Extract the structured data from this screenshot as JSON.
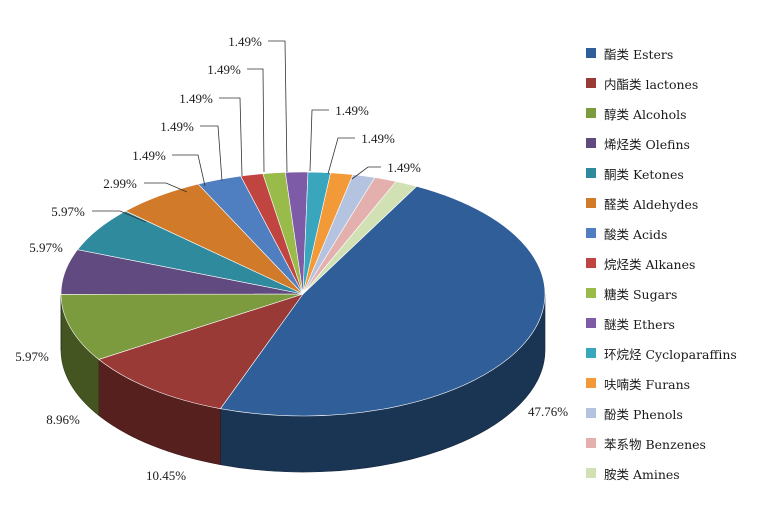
{
  "chart_data": {
    "type": "pie",
    "title": "",
    "style": "3d",
    "legend_position": "right",
    "slices": [
      {
        "name": "酯类 Esters",
        "value": 47.76,
        "label": "47.76%",
        "color": "#2f5e99"
      },
      {
        "name": "内酯类 lactones",
        "value": 10.45,
        "label": "10.45%",
        "color": "#9a3a36"
      },
      {
        "name": "醇类 Alcohols",
        "value": 8.96,
        "label": "8.96%",
        "color": "#7b9b3e"
      },
      {
        "name": "烯烃类 Olefins",
        "value": 5.97,
        "label": "5.97%",
        "color": "#614a80"
      },
      {
        "name": "酮类 Ketones",
        "value": 5.97,
        "label": "5.97%",
        "color": "#2f8a9e"
      },
      {
        "name": "醛类 Aldehydes",
        "value": 5.97,
        "label": "5.97%",
        "color": "#d07a2a"
      },
      {
        "name": "酸类 Acids",
        "value": 2.99,
        "label": "2.99%",
        "color": "#4f7fc0"
      },
      {
        "name": "烷烃类 Alkanes",
        "value": 1.49,
        "label": "1.49%",
        "color": "#c0443f"
      },
      {
        "name": "糖类 Sugars",
        "value": 1.49,
        "label": "1.49%",
        "color": "#98bb49"
      },
      {
        "name": "醚类 Ethers",
        "value": 1.49,
        "label": "1.49%",
        "color": "#7d5ba6"
      },
      {
        "name": "环烷烃 Cycloparaffins",
        "value": 1.49,
        "label": "1.49%",
        "color": "#3aa6be"
      },
      {
        "name": "呋喃类 Furans",
        "value": 1.49,
        "label": "1.49%",
        "color": "#f29a38"
      },
      {
        "name": "酚类 Phenols",
        "value": 1.49,
        "label": "1.49%",
        "color": "#b3c3e0"
      },
      {
        "name": "苯系物 Benzenes",
        "value": 1.49,
        "label": "1.49%",
        "color": "#e3b0ae"
      },
      {
        "name": "胺类 Amines",
        "value": 1.49,
        "label": "1.49%",
        "color": "#d2e1b4"
      }
    ]
  }
}
